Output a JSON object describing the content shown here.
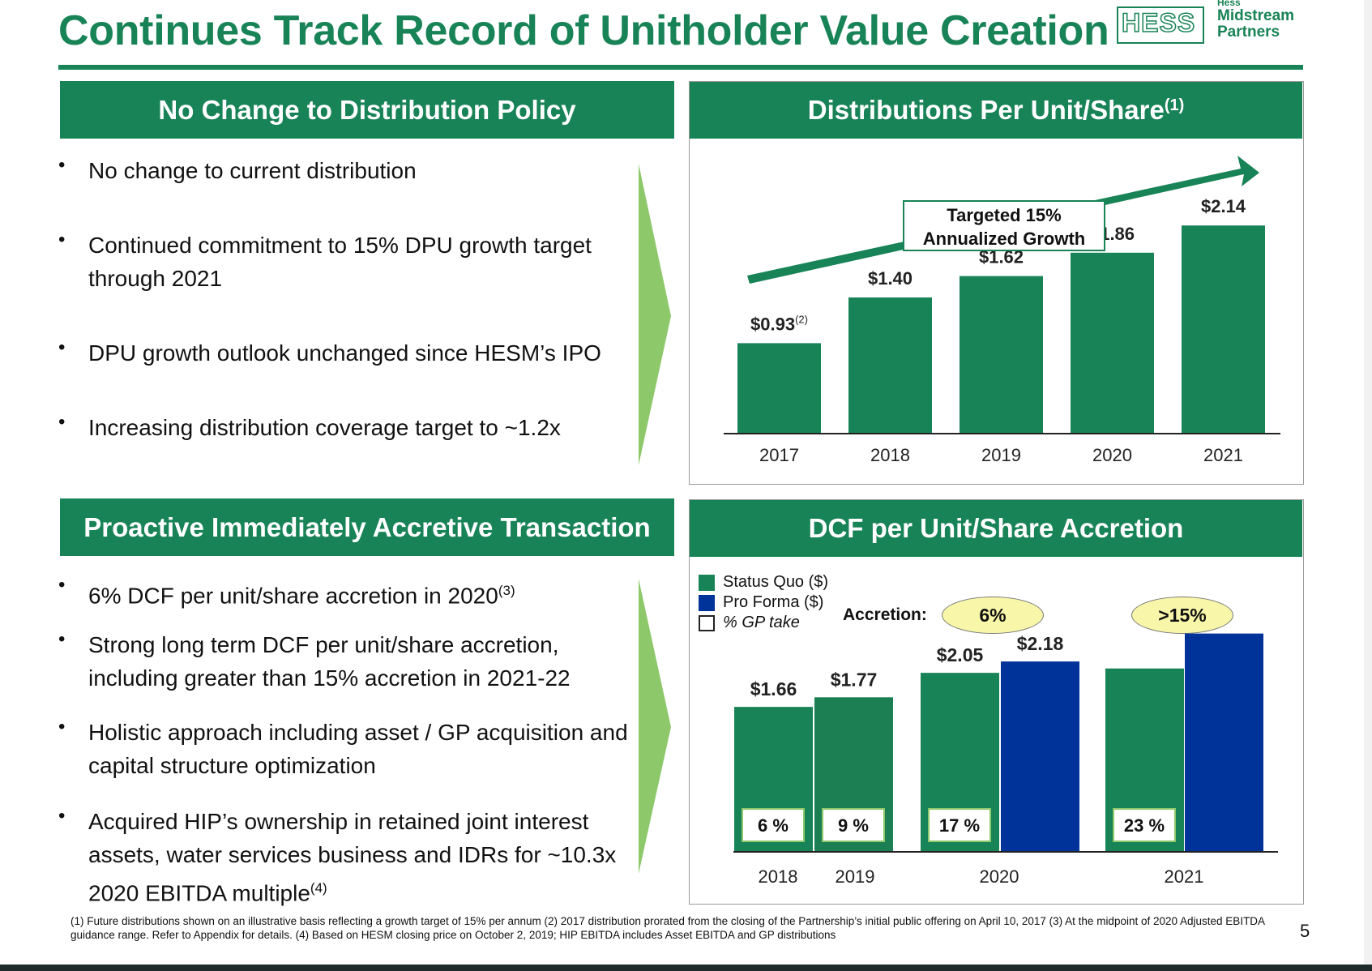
{
  "title": "Continues Track Record of Unitholder Value Creation",
  "logo": {
    "tag": "Hess",
    "hess": "HESS",
    "line1": "Midstream",
    "line2": "Partners"
  },
  "panels": {
    "distribution_policy": {
      "header": "No Change to Distribution Policy",
      "bullets": [
        "No change to current distribution",
        "Continued commitment to 15% DPU growth target through 2021",
        "DPU growth outlook unchanged since HESM’s IPO",
        "Increasing distribution coverage target to ~1.2x"
      ]
    },
    "transaction": {
      "header": "Proactive Immediately Accretive Transaction",
      "bullets": [
        {
          "text": "6% DCF per unit/share accretion in 2020",
          "sup": "(3)"
        },
        {
          "text": "Strong long term DCF per unit/share accretion, including greater than 15% accretion in 2021-22",
          "sup": ""
        },
        {
          "text": "Holistic approach including asset / GP acquisition and capital structure optimization",
          "sup": ""
        },
        {
          "text": "Acquired HIP’s ownership in retained joint interest assets, water services business and IDRs for ~10.3x 2020 EBITDA multiple",
          "sup": "(4)"
        }
      ]
    },
    "dpu_chart": {
      "header": "Distributions Per Unit/Share",
      "header_sup": "(1)"
    },
    "dcf_chart": {
      "header": "DCF per Unit/Share Accretion"
    }
  },
  "chart_data": [
    {
      "type": "bar",
      "title": "Distributions Per Unit/Share",
      "categories": [
        "2017",
        "2018",
        "2019",
        "2020",
        "2021"
      ],
      "values": [
        0.93,
        1.4,
        1.62,
        1.86,
        2.14
      ],
      "value_labels": [
        "$0.93",
        "$1.40",
        "$1.62",
        "$1.86",
        "$2.14"
      ],
      "value_label_sup": [
        "(2)",
        "",
        "",
        "",
        ""
      ],
      "ylim": [
        0,
        2.5
      ],
      "annotation": {
        "line1": "Targeted 15%",
        "line2": "Annualized Growth"
      },
      "color": "#188356"
    },
    {
      "type": "bar",
      "title": "DCF per Unit/Share Accretion",
      "categories": [
        "2018",
        "2019",
        "2020",
        "2021"
      ],
      "series": [
        {
          "name": "Status Quo ($)",
          "values": [
            1.66,
            1.77,
            2.05,
            2.1
          ],
          "color": "#188356"
        },
        {
          "name": "Pro Forma ($)",
          "values": [
            null,
            null,
            2.18,
            2.5
          ],
          "color": "#003399"
        }
      ],
      "value_labels": {
        "status_quo": [
          "$1.66",
          "$1.77",
          "$2.05",
          ""
        ],
        "pro_forma": [
          "",
          "",
          "$2.18",
          ""
        ]
      },
      "gp_take": {
        "name": "% GP take",
        "values": [
          "6 %",
          "9 %",
          "17 %",
          "23 %"
        ]
      },
      "accretion": {
        "label": "Accretion:",
        "values": [
          "6%",
          ">15%"
        ]
      },
      "ylim": [
        0,
        3.1
      ]
    }
  ],
  "footnote": "(1) Future distributions shown on an illustrative basis reflecting a growth target of 15% per annum  (2) 2017 distribution prorated from the closing of the Partnership’s initial public offering on April 10, 2017 (3) At the midpoint of 2020 Adjusted EBITDA guidance range. Refer to Appendix for details. (4) Based on HESM closing price on October 2, 2019; HIP EBITDA includes Asset EBITDA and GP distributions",
  "page_number": "5"
}
